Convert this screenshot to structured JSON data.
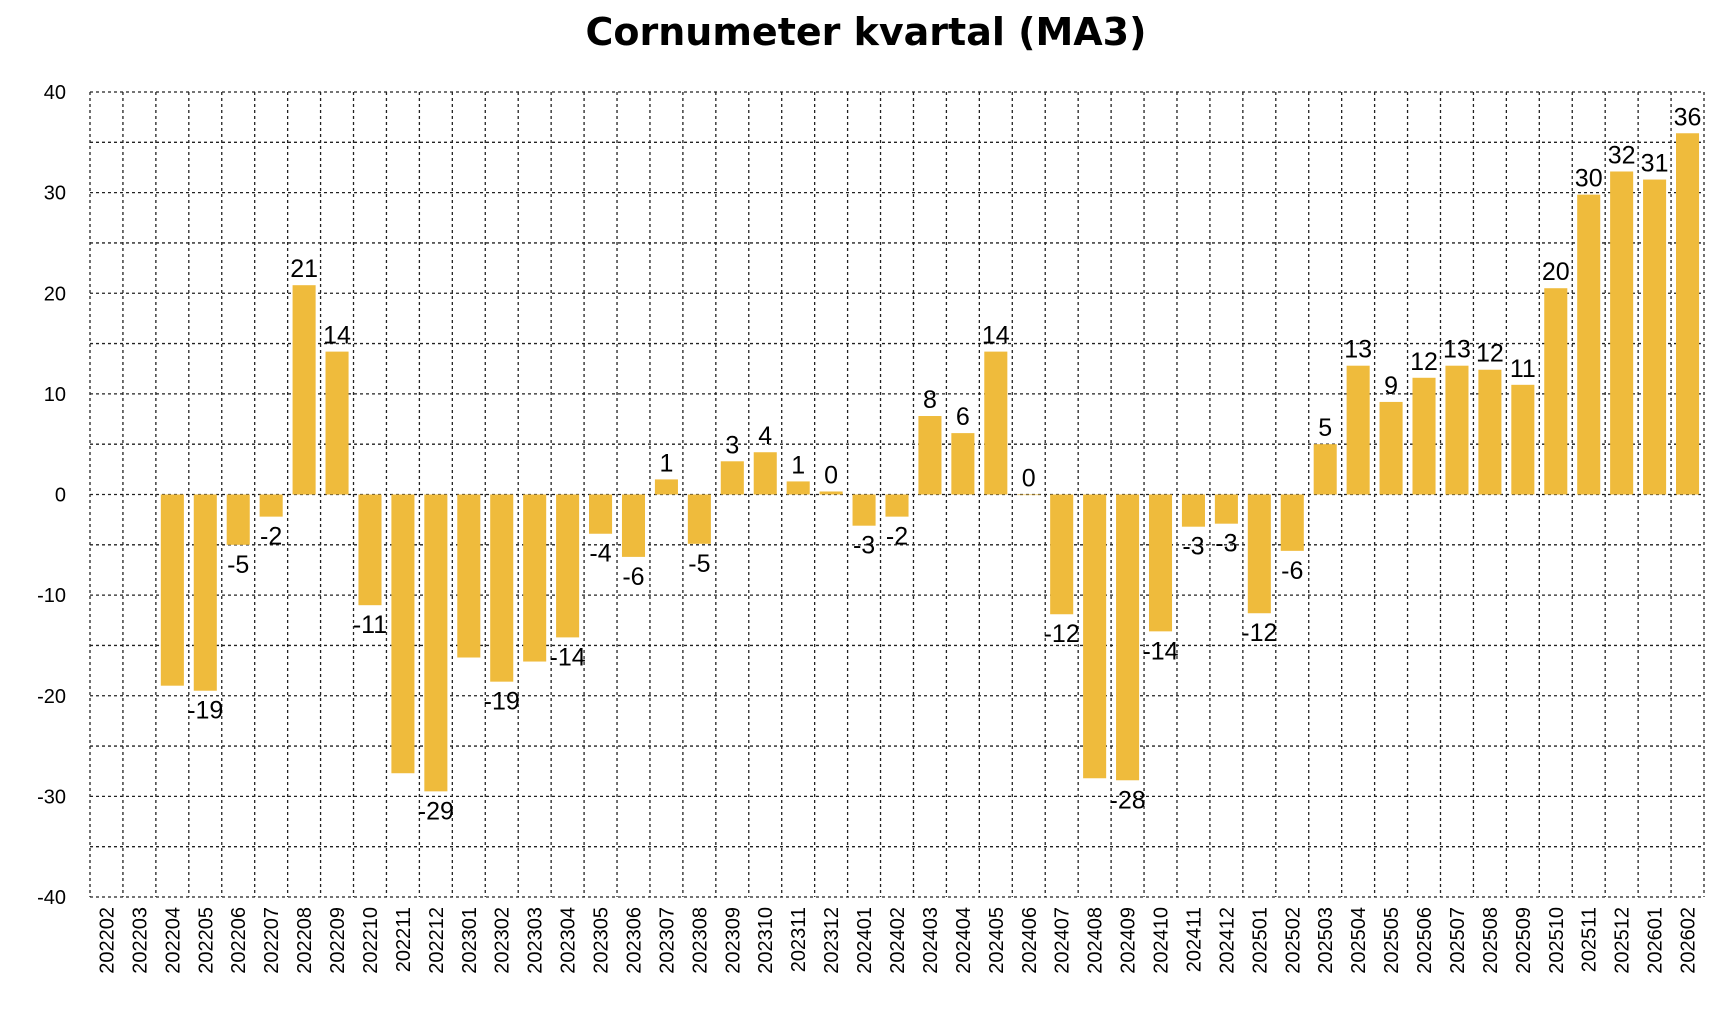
{
  "chart_data": {
    "type": "bar",
    "title": "Cornumeter kvartal (MA3)",
    "xlabel": "",
    "ylabel": "",
    "ylim": [
      -40,
      40
    ],
    "yticks": [
      40,
      30,
      20,
      10,
      0,
      -10,
      -20,
      -30,
      -40
    ],
    "grid": true,
    "bar_color": "#EFBB3C",
    "categories": [
      "202202",
      "202203",
      "202204",
      "202205",
      "202206",
      "202207",
      "202208",
      "202209",
      "202210",
      "202211",
      "202212",
      "202301",
      "202302",
      "202303",
      "202304",
      "202305",
      "202306",
      "202307",
      "202308",
      "202309",
      "202310",
      "202311",
      "202312",
      "202401",
      "202402",
      "202403",
      "202404",
      "202405",
      "202406",
      "202407",
      "202408",
      "202409",
      "202410",
      "202411",
      "202412",
      "202501",
      "202502",
      "202503",
      "202504",
      "202505",
      "202506",
      "202507",
      "202508",
      "202509",
      "202510",
      "202511",
      "202512",
      "202601",
      "202602"
    ],
    "values": [
      null,
      null,
      -19,
      -19.5,
      -5,
      -2.2,
      20.8,
      14.2,
      -11,
      -27.7,
      -29.5,
      -16.2,
      -18.6,
      -16.6,
      -14.2,
      -3.9,
      -6.2,
      1.5,
      -4.9,
      3.3,
      4.2,
      1.3,
      0.3,
      -3.1,
      -2.2,
      7.8,
      6.1,
      14.2,
      0,
      -11.9,
      -28.2,
      -28.4,
      -13.6,
      -3.2,
      -2.9,
      -11.8,
      -5.6,
      5,
      12.8,
      9.2,
      11.6,
      12.8,
      12.4,
      10.9,
      20.5,
      29.8,
      32.1,
      31.3,
      35.9
    ],
    "data_labels": [
      "",
      "",
      "",
      "-19",
      "-5",
      "-2",
      "21",
      "14",
      "-11",
      "",
      "-29",
      "",
      "-19",
      "",
      "-14",
      "-4",
      "-6",
      "1",
      "-5",
      "3",
      "4",
      "1",
      "0",
      "-3",
      "-2",
      "8",
      "6",
      "14",
      "0",
      "-12",
      "",
      "-28",
      "-14",
      "-3",
      "-3",
      "-12",
      "-6",
      "5",
      "13",
      "9",
      "12",
      "13",
      "12",
      "11",
      "20",
      "30",
      "32",
      "31",
      "36"
    ]
  }
}
